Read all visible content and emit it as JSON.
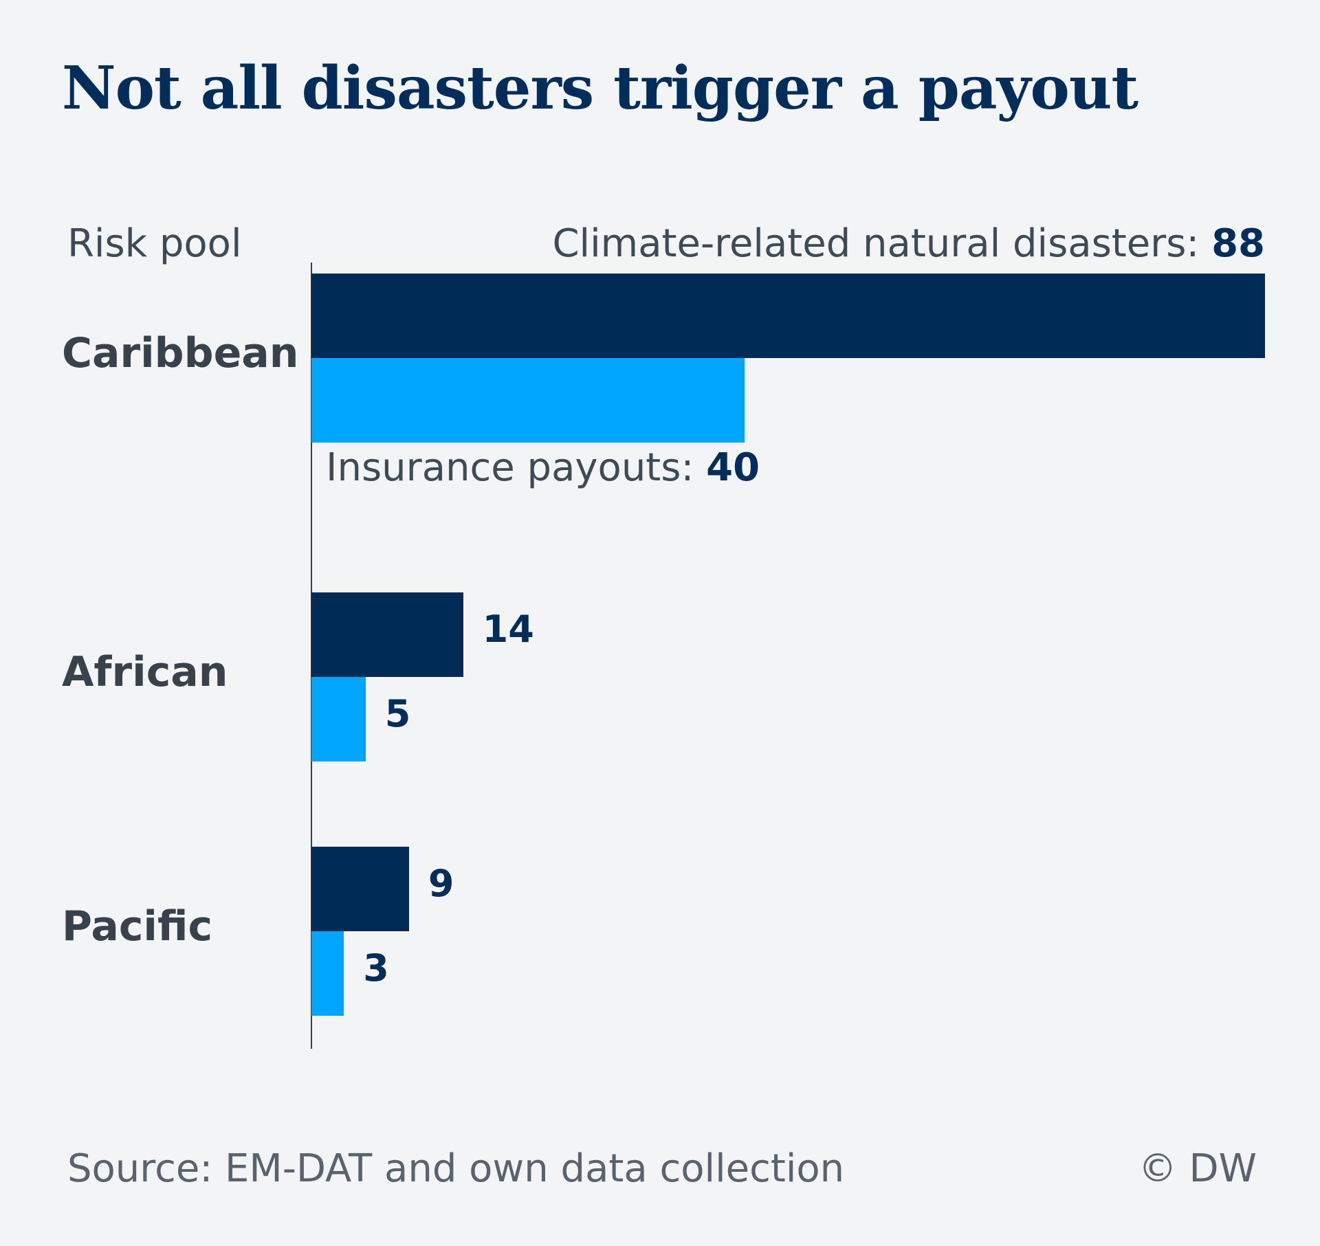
{
  "title": "Not all disasters trigger a payout",
  "header": {
    "category_label": "Risk pool",
    "disasters_label": "Climate-related natural disasters:",
    "disasters_value": "88"
  },
  "payouts_legend": {
    "label": "Insurance payouts:",
    "value": "40"
  },
  "footer": {
    "source": "Source: EM-DAT and own data collection",
    "credit": "© DW"
  },
  "colors": {
    "disasters": "#002b55",
    "payouts": "#00a5ff"
  },
  "chart_data": {
    "type": "bar",
    "orientation": "horizontal",
    "categories": [
      "Caribbean",
      "African",
      "Pacific"
    ],
    "series": [
      {
        "name": "Climate-related natural disasters",
        "values": [
          88,
          14,
          9
        ]
      },
      {
        "name": "Insurance payouts",
        "values": [
          40,
          5,
          3
        ]
      }
    ],
    "title": "Not all disasters trigger a payout",
    "ylabel": "Risk pool",
    "xlim": [
      0,
      88
    ],
    "grid": false
  }
}
